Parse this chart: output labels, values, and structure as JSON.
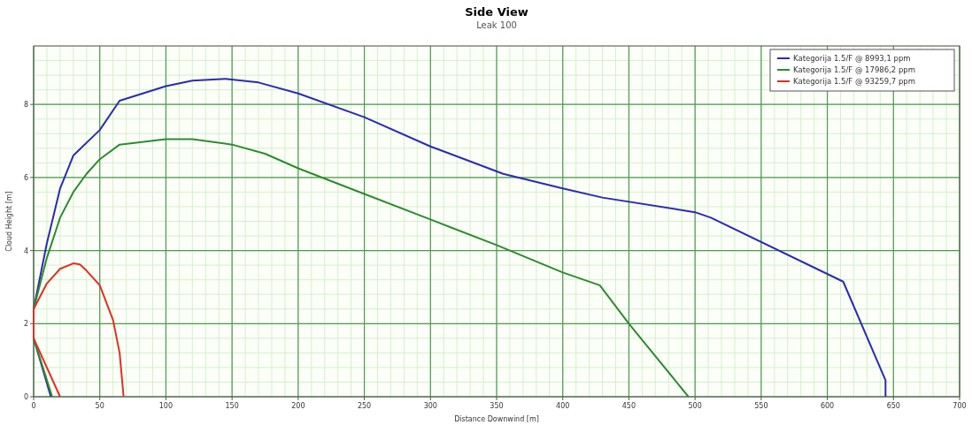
{
  "chart_data": {
    "type": "line",
    "title": "Side View",
    "subtitle": "Leak 100",
    "xlabel": "Distance Downwind [m]",
    "ylabel": "Cloud Height [m]",
    "xlim": [
      0,
      700
    ],
    "xticks": [
      0,
      50,
      100,
      150,
      200,
      250,
      300,
      350,
      400,
      450,
      500,
      550,
      600,
      650,
      700
    ],
    "ylim": [
      0,
      9.6
    ],
    "yticks": [
      0,
      2,
      4,
      6,
      8
    ],
    "grid": true,
    "legend": "top right",
    "series": [
      {
        "name": "Kategorija 1.5/F @ 8993,1 ppm",
        "color": "#2b2bb0",
        "x": [
          13,
          0,
          0,
          5,
          10,
          20,
          30,
          50,
          65,
          100,
          120,
          145,
          170,
          200,
          250,
          300,
          355,
          400,
          430,
          500,
          512,
          612,
          644,
          644
        ],
        "values": [
          0,
          1.6,
          2.4,
          3.3,
          4.2,
          5.7,
          6.6,
          7.3,
          8.1,
          8.5,
          8.65,
          8.7,
          8.6,
          8.3,
          7.65,
          6.85,
          6.1,
          5.7,
          5.45,
          5.05,
          4.9,
          3.15,
          0.45,
          0
        ]
      },
      {
        "name": "Kategorija 1.5/F @ 17986,2 ppm",
        "color": "#2e8b2e",
        "x": [
          14,
          0,
          0,
          10,
          20,
          30,
          40,
          50,
          65,
          100,
          120,
          150,
          175,
          200,
          250,
          300,
          350,
          400,
          428,
          450,
          495
        ],
        "values": [
          0,
          1.6,
          2.4,
          3.8,
          4.9,
          5.6,
          6.1,
          6.5,
          6.9,
          7.05,
          7.05,
          6.9,
          6.65,
          6.25,
          5.55,
          4.85,
          4.15,
          3.4,
          3.05,
          2.0,
          0
        ]
      },
      {
        "name": "Kategorija 1.5/F @ 93259,7 ppm",
        "color": "#e03020",
        "x": [
          20,
          0,
          0,
          10,
          20,
          30,
          35,
          40,
          50,
          60,
          65,
          68
        ],
        "values": [
          0,
          1.6,
          2.4,
          3.1,
          3.5,
          3.65,
          3.62,
          3.45,
          3.05,
          2.1,
          1.2,
          0
        ]
      }
    ]
  }
}
